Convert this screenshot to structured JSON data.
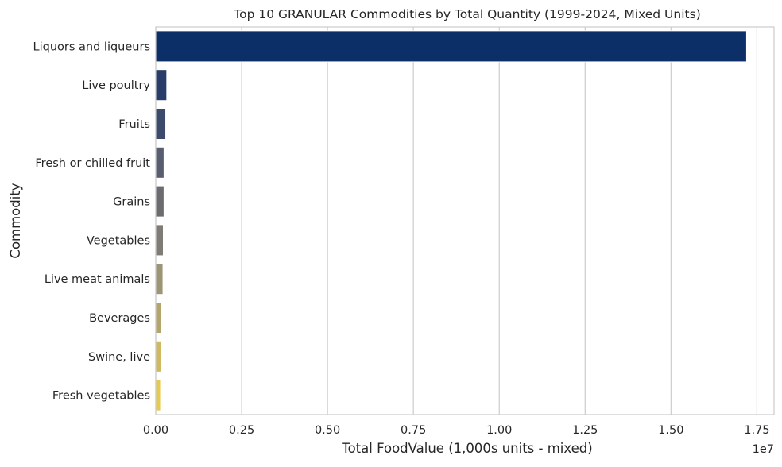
{
  "chart_data": {
    "type": "bar",
    "orientation": "horizontal",
    "title": "Top 10 GRANULAR Commodities by Total Quantity (1999-2024, Mixed Units)",
    "xlabel": "Total FoodValue (1,000s units - mixed)",
    "ylabel": "Commodity",
    "x_offset_label": "1e7",
    "xlim": [
      0,
      1.8
    ],
    "x_ticks": [
      0.0,
      0.25,
      0.5,
      0.75,
      1.0,
      1.25,
      1.5,
      1.75
    ],
    "x_tick_labels": [
      "0.00",
      "0.25",
      "0.50",
      "0.75",
      "1.00",
      "1.25",
      "1.50",
      "1.75"
    ],
    "grid": "vertical",
    "categories": [
      "Liquors and liqueurs",
      "Live poultry",
      "Fruits",
      "Fresh or chilled fruit",
      "Grains",
      "Vegetables",
      "Live meat animals",
      "Beverages",
      "Swine, live",
      "Fresh vegetables"
    ],
    "values": [
      17200000,
      320000,
      290000,
      240000,
      240000,
      220000,
      210000,
      170000,
      150000,
      140000
    ],
    "colors": [
      "#0b2f66",
      "#273c68",
      "#3c4a6c",
      "#585e70",
      "#6c6c70",
      "#7f7c76",
      "#9c9576",
      "#b4a66b",
      "#cfb85d",
      "#e6cb4b"
    ]
  }
}
